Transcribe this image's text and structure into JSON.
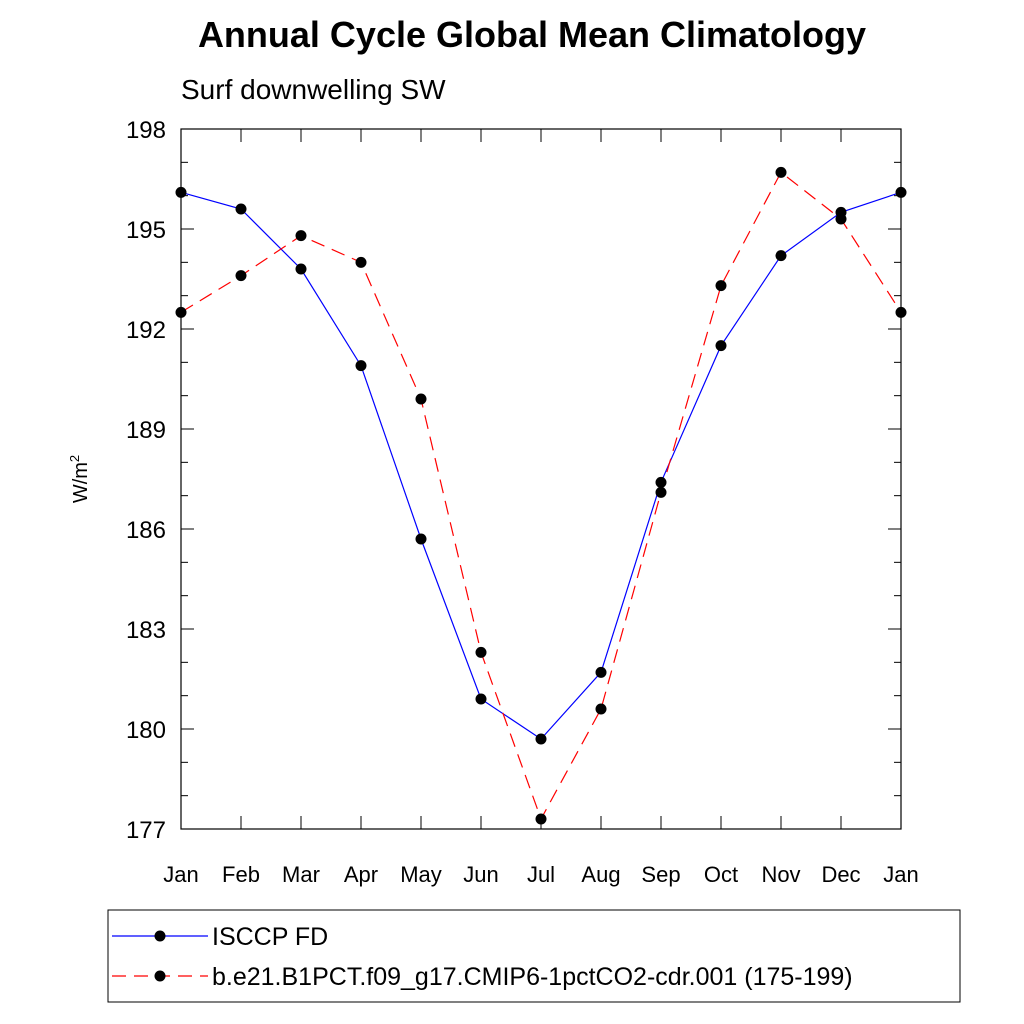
{
  "chart_data": {
    "type": "line",
    "title": "Annual Cycle Global Mean Climatology",
    "subtitle": "Surf downwelling SW",
    "ylabel": "W/m",
    "ylabel_superscript": "2",
    "xlabel": "",
    "categories": [
      "Jan",
      "Feb",
      "Mar",
      "Apr",
      "May",
      "Jun",
      "Jul",
      "Aug",
      "Sep",
      "Oct",
      "Nov",
      "Dec",
      "Jan"
    ],
    "ylim": [
      177,
      198
    ],
    "yticks": [
      177,
      180,
      183,
      186,
      189,
      192,
      195,
      198
    ],
    "series": [
      {
        "name": "ISCCP FD",
        "color": "#0000ff",
        "dash": "solid",
        "marker": "circle",
        "values": [
          196.1,
          195.6,
          193.8,
          190.9,
          185.7,
          180.9,
          179.7,
          181.7,
          187.4,
          191.5,
          194.2,
          195.5,
          196.1
        ]
      },
      {
        "name": "b.e21.B1PCT.f09_g17.CMIP6-1pctCO2-cdr.001 (175-199)",
        "color": "#ff0000",
        "dash": "dashed",
        "marker": "circle",
        "values": [
          192.5,
          193.6,
          194.8,
          194.0,
          189.9,
          182.3,
          177.3,
          180.6,
          187.1,
          193.3,
          196.7,
          195.3,
          192.5
        ]
      }
    ],
    "legend_position": "bottom",
    "grid": false
  }
}
